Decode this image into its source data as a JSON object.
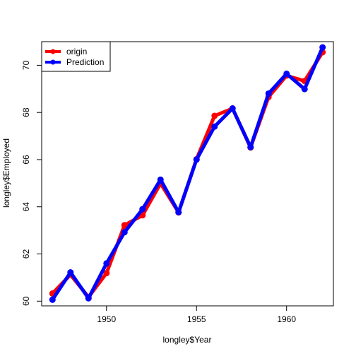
{
  "chart_data": {
    "type": "line",
    "title": "",
    "xlabel": "longley$Year",
    "ylabel": "longley$Employed",
    "xlim": [
      1946.4,
      1962.6
    ],
    "ylim": [
      59.8,
      71.0
    ],
    "x_ticks": [
      1950,
      1955,
      1960
    ],
    "y_ticks": [
      60,
      62,
      64,
      66,
      68,
      70
    ],
    "legend_position": "top-left",
    "x": [
      1947,
      1948,
      1949,
      1950,
      1951,
      1952,
      1953,
      1954,
      1955,
      1956,
      1957,
      1958,
      1959,
      1960,
      1961,
      1962
    ],
    "series": [
      {
        "name": "origin",
        "color": "#ff0000",
        "values": [
          60.323,
          61.122,
          60.171,
          61.187,
          63.221,
          63.639,
          64.989,
          63.761,
          66.019,
          67.857,
          68.169,
          66.513,
          68.655,
          69.564,
          69.331,
          70.551
        ]
      },
      {
        "name": "Prediction",
        "color": "#0000ff",
        "values": [
          60.06,
          61.22,
          60.12,
          61.6,
          62.92,
          63.9,
          65.15,
          63.77,
          66.0,
          67.4,
          68.17,
          66.53,
          68.8,
          69.64,
          68.99,
          70.76
        ]
      }
    ]
  }
}
